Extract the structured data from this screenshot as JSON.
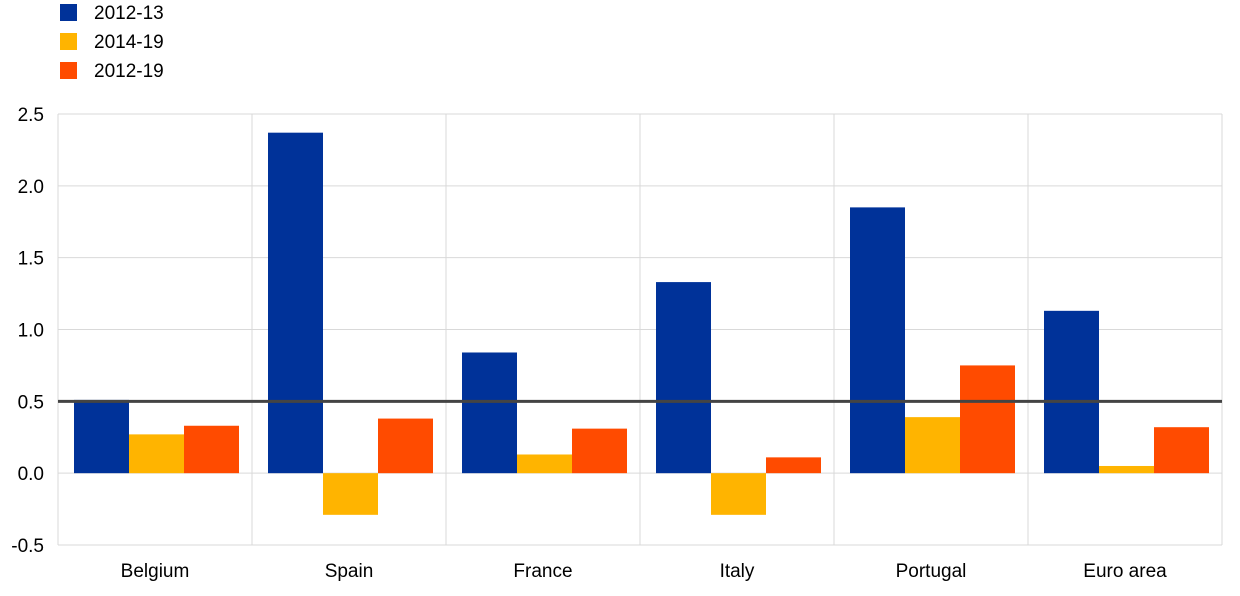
{
  "chart_data": {
    "type": "bar",
    "title": "",
    "xlabel": "",
    "ylabel": "",
    "categories": [
      "Belgium",
      "Spain",
      "France",
      "Italy",
      "Portugal",
      "Euro area"
    ],
    "series": [
      {
        "name": "2012-13",
        "color": "#003299",
        "values": [
          0.51,
          2.37,
          0.84,
          1.33,
          1.85,
          1.13
        ]
      },
      {
        "name": "2014-19",
        "color": "#FFB400",
        "values": [
          0.27,
          -0.29,
          0.13,
          -0.29,
          0.39,
          0.05
        ]
      },
      {
        "name": "2012-19",
        "color": "#FF4B00",
        "values": [
          0.33,
          0.38,
          0.31,
          0.11,
          0.75,
          0.32
        ]
      }
    ],
    "ylim": [
      -0.5,
      2.5
    ],
    "yticks": [
      "-0.5",
      "0.0",
      "0.5",
      "1.0",
      "1.5",
      "2.0",
      "2.5"
    ],
    "ytick_values": [
      -0.5,
      0,
      0.5,
      1.0,
      1.5,
      2.0,
      2.5
    ],
    "reference_line": {
      "value": 0.5,
      "color": "#444444"
    },
    "grid": true,
    "legend": "top-left"
  }
}
